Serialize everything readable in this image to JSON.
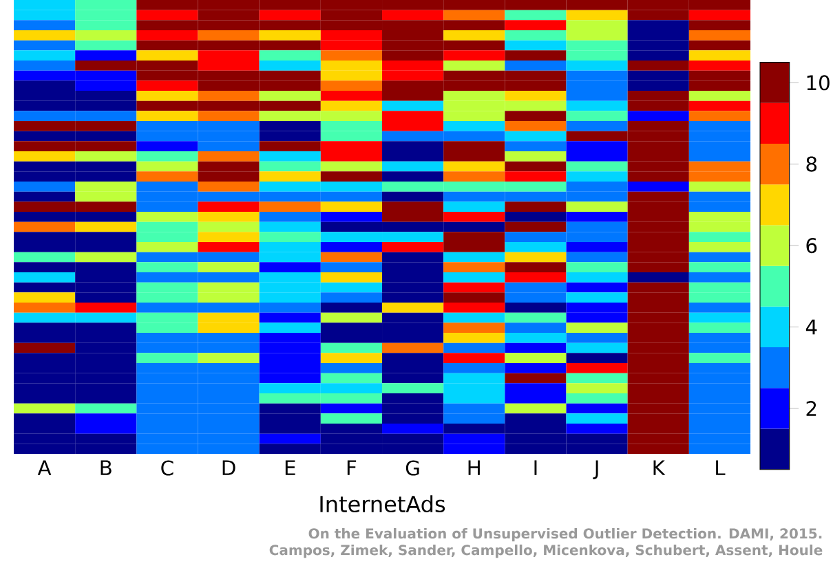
{
  "chart_data": {
    "type": "heatmap",
    "xlabel": "InternetAds",
    "categories": [
      "A",
      "B",
      "C",
      "D",
      "E",
      "F",
      "G",
      "H",
      "I",
      "J",
      "K",
      "L"
    ],
    "y_categories": [
      null,
      null,
      null,
      null,
      null,
      null,
      null,
      null,
      null,
      null,
      null,
      null,
      null,
      null,
      null,
      null,
      null,
      null,
      null,
      null,
      null,
      null,
      null,
      null,
      null,
      null,
      null,
      null,
      null,
      null,
      null,
      null,
      null,
      null,
      null,
      null,
      null,
      null,
      null,
      null,
      null,
      null,
      null,
      null,
      null
    ],
    "cells": [
      [
        4,
        5,
        10,
        10,
        10,
        10,
        10,
        10,
        10,
        10,
        10,
        10
      ],
      [
        4,
        5,
        9,
        10,
        9,
        10,
        9,
        8,
        5,
        7,
        10,
        9
      ],
      [
        3,
        5,
        10,
        10,
        10,
        10,
        10,
        10,
        9,
        6,
        1,
        10
      ],
      [
        7,
        6,
        9,
        8,
        7,
        9,
        10,
        7,
        5,
        6,
        1,
        8
      ],
      [
        3,
        5,
        10,
        10,
        10,
        9,
        10,
        10,
        4,
        5,
        1,
        10
      ],
      [
        4,
        2,
        7,
        9,
        5,
        8,
        10,
        9,
        10,
        5,
        1,
        7
      ],
      [
        3,
        10,
        10,
        9,
        4,
        7,
        9,
        6,
        3,
        4,
        10,
        9
      ],
      [
        2,
        2,
        10,
        10,
        10,
        7,
        9,
        10,
        10,
        3,
        1,
        10
      ],
      [
        1,
        2,
        9,
        10,
        10,
        8,
        10,
        10,
        10,
        3,
        1,
        10
      ],
      [
        1,
        1,
        7,
        8,
        6,
        9,
        10,
        6,
        7,
        3,
        10,
        6
      ],
      [
        1,
        1,
        10,
        10,
        10,
        7,
        4,
        6,
        6,
        4,
        10,
        9
      ],
      [
        3,
        3,
        7,
        8,
        6,
        6,
        9,
        6,
        10,
        5,
        2,
        8
      ],
      [
        10,
        10,
        3,
        3,
        1,
        5,
        9,
        4,
        8,
        3,
        10,
        3
      ],
      [
        1,
        1,
        3,
        3,
        1,
        5,
        3,
        3,
        4,
        10,
        10,
        3
      ],
      [
        10,
        10,
        2,
        3,
        10,
        9,
        1,
        10,
        3,
        2,
        10,
        3
      ],
      [
        7,
        6,
        5,
        8,
        4,
        9,
        1,
        10,
        6,
        2,
        10,
        3
      ],
      [
        1,
        1,
        6,
        10,
        5,
        6,
        4,
        7,
        10,
        5,
        10,
        8
      ],
      [
        1,
        1,
        8,
        10,
        7,
        10,
        1,
        8,
        9,
        4,
        10,
        8
      ],
      [
        3,
        6,
        3,
        8,
        4,
        4,
        5,
        5,
        5,
        3,
        2,
        6
      ],
      [
        1,
        6,
        3,
        3,
        3,
        3,
        1,
        3,
        3,
        3,
        10,
        3
      ],
      [
        10,
        10,
        3,
        9,
        8,
        7,
        10,
        4,
        10,
        6,
        10,
        3
      ],
      [
        1,
        1,
        6,
        7,
        3,
        2,
        10,
        9,
        1,
        2,
        10,
        6
      ],
      [
        8,
        7,
        5,
        6,
        4,
        1,
        1,
        1,
        10,
        3,
        10,
        6
      ],
      [
        1,
        1,
        5,
        7,
        5,
        4,
        4,
        10,
        3,
        3,
        10,
        5
      ],
      [
        1,
        1,
        6,
        9,
        4,
        2,
        9,
        10,
        4,
        2,
        10,
        6
      ],
      [
        5,
        6,
        3,
        3,
        4,
        8,
        1,
        4,
        7,
        3,
        10,
        3
      ],
      [
        1,
        1,
        5,
        6,
        2,
        3,
        1,
        8,
        10,
        5,
        10,
        5
      ],
      [
        4,
        1,
        3,
        3,
        4,
        7,
        1,
        4,
        9,
        4,
        1,
        3
      ],
      [
        1,
        1,
        5,
        6,
        4,
        4,
        1,
        9,
        3,
        2,
        10,
        5
      ],
      [
        7,
        1,
        5,
        6,
        4,
        3,
        1,
        10,
        3,
        4,
        10,
        5
      ],
      [
        8,
        9,
        3,
        3,
        3,
        1,
        7,
        9,
        1,
        2,
        10,
        3
      ],
      [
        4,
        4,
        5,
        7,
        2,
        6,
        1,
        4,
        5,
        2,
        10,
        4
      ],
      [
        1,
        1,
        5,
        7,
        4,
        1,
        1,
        8,
        3,
        6,
        10,
        5
      ],
      [
        1,
        1,
        3,
        3,
        2,
        1,
        1,
        7,
        4,
        3,
        10,
        3
      ],
      [
        10,
        1,
        3,
        3,
        2,
        5,
        8,
        3,
        2,
        4,
        10,
        3
      ],
      [
        1,
        1,
        5,
        6,
        2,
        7,
        1,
        9,
        6,
        1,
        10,
        5
      ],
      [
        1,
        1,
        3,
        3,
        2,
        3,
        1,
        3,
        2,
        9,
        10,
        3
      ],
      [
        1,
        1,
        3,
        3,
        2,
        5,
        1,
        4,
        10,
        5,
        10,
        3
      ],
      [
        1,
        1,
        3,
        3,
        4,
        4,
        5,
        4,
        2,
        6,
        10,
        3
      ],
      [
        1,
        1,
        3,
        3,
        5,
        5,
        1,
        4,
        2,
        5,
        10,
        3
      ],
      [
        6,
        5,
        3,
        3,
        1,
        2,
        1,
        3,
        6,
        2,
        10,
        3
      ],
      [
        1,
        2,
        3,
        3,
        1,
        5,
        1,
        3,
        1,
        4,
        10,
        3
      ],
      [
        1,
        2,
        3,
        3,
        1,
        1,
        2,
        1,
        1,
        2,
        10,
        3
      ],
      [
        1,
        1,
        3,
        3,
        2,
        1,
        1,
        2,
        1,
        1,
        10,
        3
      ],
      [
        1,
        1,
        3,
        3,
        1,
        1,
        1,
        2,
        1,
        1,
        10,
        3
      ]
    ],
    "colors": [
      "#00008b",
      "#0000ff",
      "#0077ff",
      "#00d5ff",
      "#45ffb0",
      "#bfff3a",
      "#ffd700",
      "#ff7000",
      "#ff0000",
      "#8b0000"
    ],
    "clim": [
      0.5,
      10.5
    ],
    "cticks": [
      2,
      4,
      6,
      8,
      10
    ],
    "annotations": [
      "On the Evaluation of Unsupervised Outlier Detection. DAMI, 2015.",
      "Campos, Zimek, Sander, Campello, Micenkova, Schubert, Assent, Houle"
    ]
  }
}
